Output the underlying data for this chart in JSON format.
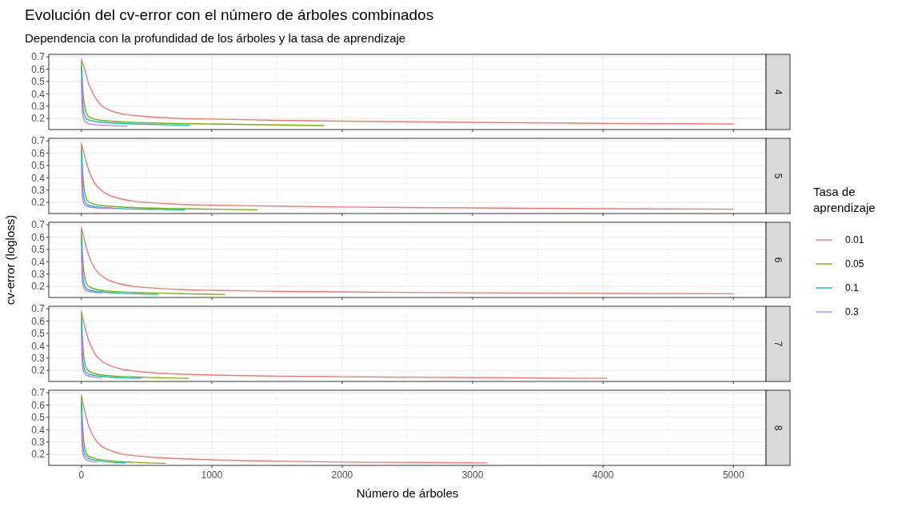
{
  "chart_data": [
    {
      "type": "line",
      "title": "Evolución del cv-error con el número de árboles combinados",
      "subtitle": "Dependencia con la profundidad de los árboles y la tasa de aprendizaje",
      "annotations": [
        "4"
      ],
      "xlim": [
        -250,
        5250
      ],
      "xticks": [
        0,
        1000,
        2000,
        3000,
        4000,
        5000
      ],
      "ylim": [
        0.11,
        0.72
      ],
      "yticks": [
        0.2,
        0.3,
        0.4,
        0.5,
        0.6,
        0.7
      ],
      "grid": true,
      "tick_labels": "y",
      "line_style": "solid",
      "series": [
        {
          "color": "#f8766d",
          "x": [
            0,
            25,
            50,
            100,
            150,
            200,
            300,
            400,
            500,
            750,
            1000,
            1500,
            2000,
            3000,
            4000,
            5000
          ],
          "values": [
            0.68,
            0.6,
            0.5,
            0.38,
            0.31,
            0.275,
            0.24,
            0.225,
            0.215,
            0.2,
            0.195,
            0.185,
            0.178,
            0.168,
            0.16,
            0.155
          ]
        },
        {
          "color": "#7cae00",
          "x": [
            0,
            10,
            25,
            50,
            100,
            200,
            500,
            1000,
            1500,
            1860
          ],
          "values": [
            0.66,
            0.45,
            0.3,
            0.22,
            0.195,
            0.18,
            0.165,
            0.155,
            0.147,
            0.142
          ]
        },
        {
          "color": "#00bfc4",
          "x": [
            0,
            5,
            15,
            30,
            60,
            150,
            300,
            600,
            830
          ],
          "values": [
            0.62,
            0.45,
            0.27,
            0.21,
            0.185,
            0.17,
            0.16,
            0.15,
            0.145
          ]
        },
        {
          "color": "#c77cff",
          "x": [
            0,
            5,
            15,
            40,
            100,
            200,
            350
          ],
          "values": [
            0.52,
            0.3,
            0.2,
            0.165,
            0.15,
            0.143,
            0.138
          ]
        }
      ]
    },
    {
      "type": "line",
      "annotations": [
        "5"
      ],
      "xlim": [
        -250,
        5250
      ],
      "xticks": [
        0,
        1000,
        2000,
        3000,
        4000,
        5000
      ],
      "ylim": [
        0.11,
        0.72
      ],
      "yticks": [
        0.2,
        0.3,
        0.4,
        0.5,
        0.6,
        0.7
      ],
      "grid": true,
      "tick_labels": "y",
      "line_style": "solid",
      "series": [
        {
          "color": "#f8766d",
          "x": [
            0,
            25,
            50,
            100,
            150,
            200,
            300,
            400,
            500,
            750,
            1000,
            1500,
            2000,
            3000,
            4000,
            5000
          ],
          "values": [
            0.68,
            0.58,
            0.48,
            0.36,
            0.3,
            0.265,
            0.23,
            0.21,
            0.2,
            0.185,
            0.178,
            0.17,
            0.163,
            0.155,
            0.149,
            0.145
          ]
        },
        {
          "color": "#7cae00",
          "x": [
            0,
            10,
            25,
            50,
            100,
            200,
            500,
            1000,
            1350
          ],
          "values": [
            0.66,
            0.44,
            0.29,
            0.21,
            0.185,
            0.17,
            0.155,
            0.145,
            0.14
          ]
        },
        {
          "color": "#00bfc4",
          "x": [
            0,
            5,
            15,
            30,
            60,
            150,
            300,
            600,
            790
          ],
          "values": [
            0.62,
            0.44,
            0.26,
            0.2,
            0.175,
            0.16,
            0.15,
            0.143,
            0.14
          ]
        },
        {
          "color": "#c77cff",
          "x": [
            0,
            5,
            15,
            40,
            100,
            200,
            264
          ],
          "values": [
            0.52,
            0.3,
            0.2,
            0.17,
            0.157,
            0.152,
            0.15
          ]
        }
      ]
    },
    {
      "type": "line",
      "annotations": [
        "6"
      ],
      "ylabel": "cv-error (logloss)",
      "legend_title": "Tasa de aprendizaje",
      "legend": "right",
      "xlim": [
        -250,
        5250
      ],
      "xticks": [
        0,
        1000,
        2000,
        3000,
        4000,
        5000
      ],
      "ylim": [
        0.11,
        0.72
      ],
      "yticks": [
        0.2,
        0.3,
        0.4,
        0.5,
        0.6,
        0.7
      ],
      "grid": true,
      "tick_labels": "y",
      "line_style": "solid",
      "series": [
        {
          "name": "0.01",
          "color": "#f8766d",
          "x": [
            0,
            25,
            50,
            100,
            150,
            200,
            300,
            400,
            500,
            750,
            1000,
            1500,
            2000,
            3000,
            4000,
            5000
          ],
          "values": [
            0.68,
            0.57,
            0.47,
            0.35,
            0.29,
            0.255,
            0.22,
            0.2,
            0.19,
            0.175,
            0.168,
            0.16,
            0.155,
            0.148,
            0.143,
            0.14
          ]
        },
        {
          "name": "0.05",
          "color": "#7cae00",
          "x": [
            0,
            10,
            25,
            50,
            100,
            200,
            500,
            800,
            1100
          ],
          "values": [
            0.66,
            0.43,
            0.28,
            0.205,
            0.18,
            0.163,
            0.148,
            0.14,
            0.135
          ]
        },
        {
          "name": "0.1",
          "color": "#00bfc4",
          "x": [
            0,
            5,
            15,
            30,
            60,
            150,
            300,
            585
          ],
          "values": [
            0.62,
            0.43,
            0.25,
            0.195,
            0.17,
            0.155,
            0.145,
            0.135
          ]
        },
        {
          "name": "0.3",
          "color": "#c77cff",
          "x": [
            0,
            5,
            15,
            40,
            100,
            160
          ],
          "values": [
            0.52,
            0.3,
            0.2,
            0.165,
            0.152,
            0.147
          ]
        }
      ]
    },
    {
      "type": "line",
      "annotations": [
        "7"
      ],
      "xlim": [
        -250,
        5250
      ],
      "xticks": [
        0,
        1000,
        2000,
        3000,
        4000,
        5000
      ],
      "ylim": [
        0.11,
        0.72
      ],
      "yticks": [
        0.2,
        0.3,
        0.4,
        0.5,
        0.6,
        0.7
      ],
      "grid": true,
      "tick_labels": "y",
      "line_style": "solid",
      "series": [
        {
          "color": "#f8766d",
          "x": [
            0,
            25,
            50,
            100,
            150,
            200,
            300,
            400,
            500,
            750,
            1000,
            1500,
            2000,
            3000,
            4030
          ],
          "values": [
            0.68,
            0.56,
            0.46,
            0.34,
            0.28,
            0.248,
            0.212,
            0.195,
            0.185,
            0.17,
            0.162,
            0.153,
            0.148,
            0.141,
            0.135
          ]
        },
        {
          "color": "#7cae00",
          "x": [
            0,
            10,
            25,
            50,
            100,
            200,
            500,
            820
          ],
          "values": [
            0.66,
            0.43,
            0.27,
            0.2,
            0.175,
            0.158,
            0.143,
            0.135
          ]
        },
        {
          "color": "#00bfc4",
          "x": [
            0,
            5,
            15,
            30,
            60,
            150,
            300,
            455
          ],
          "values": [
            0.62,
            0.43,
            0.25,
            0.19,
            0.168,
            0.152,
            0.14,
            0.135
          ]
        },
        {
          "color": "#c77cff",
          "x": [
            0,
            5,
            15,
            40,
            100,
            150
          ],
          "values": [
            0.52,
            0.3,
            0.195,
            0.16,
            0.145,
            0.14
          ]
        }
      ]
    },
    {
      "type": "line",
      "annotations": [
        "8"
      ],
      "xlabel": "Número de árboles",
      "xlim": [
        -250,
        5250
      ],
      "xticks": [
        0,
        1000,
        2000,
        3000,
        4000,
        5000
      ],
      "ylim": [
        0.11,
        0.72
      ],
      "yticks": [
        0.2,
        0.3,
        0.4,
        0.5,
        0.6,
        0.7
      ],
      "grid": true,
      "line_style": "solid",
      "series": [
        {
          "color": "#f8766d",
          "x": [
            0,
            25,
            50,
            100,
            150,
            200,
            300,
            400,
            500,
            750,
            1000,
            1500,
            2000,
            3110
          ],
          "values": [
            0.68,
            0.55,
            0.45,
            0.33,
            0.27,
            0.24,
            0.205,
            0.19,
            0.18,
            0.165,
            0.155,
            0.145,
            0.137,
            0.13
          ]
        },
        {
          "color": "#7cae00",
          "x": [
            0,
            10,
            25,
            50,
            100,
            200,
            400,
            645
          ],
          "values": [
            0.66,
            0.42,
            0.26,
            0.19,
            0.168,
            0.15,
            0.135,
            0.127
          ]
        },
        {
          "color": "#00bfc4",
          "x": [
            0,
            5,
            15,
            30,
            60,
            150,
            340
          ],
          "values": [
            0.62,
            0.42,
            0.24,
            0.19,
            0.165,
            0.145,
            0.13
          ]
        },
        {
          "color": "#c77cff",
          "x": [
            0,
            5,
            15,
            40,
            115
          ],
          "values": [
            0.52,
            0.3,
            0.19,
            0.155,
            0.135
          ]
        }
      ]
    }
  ]
}
